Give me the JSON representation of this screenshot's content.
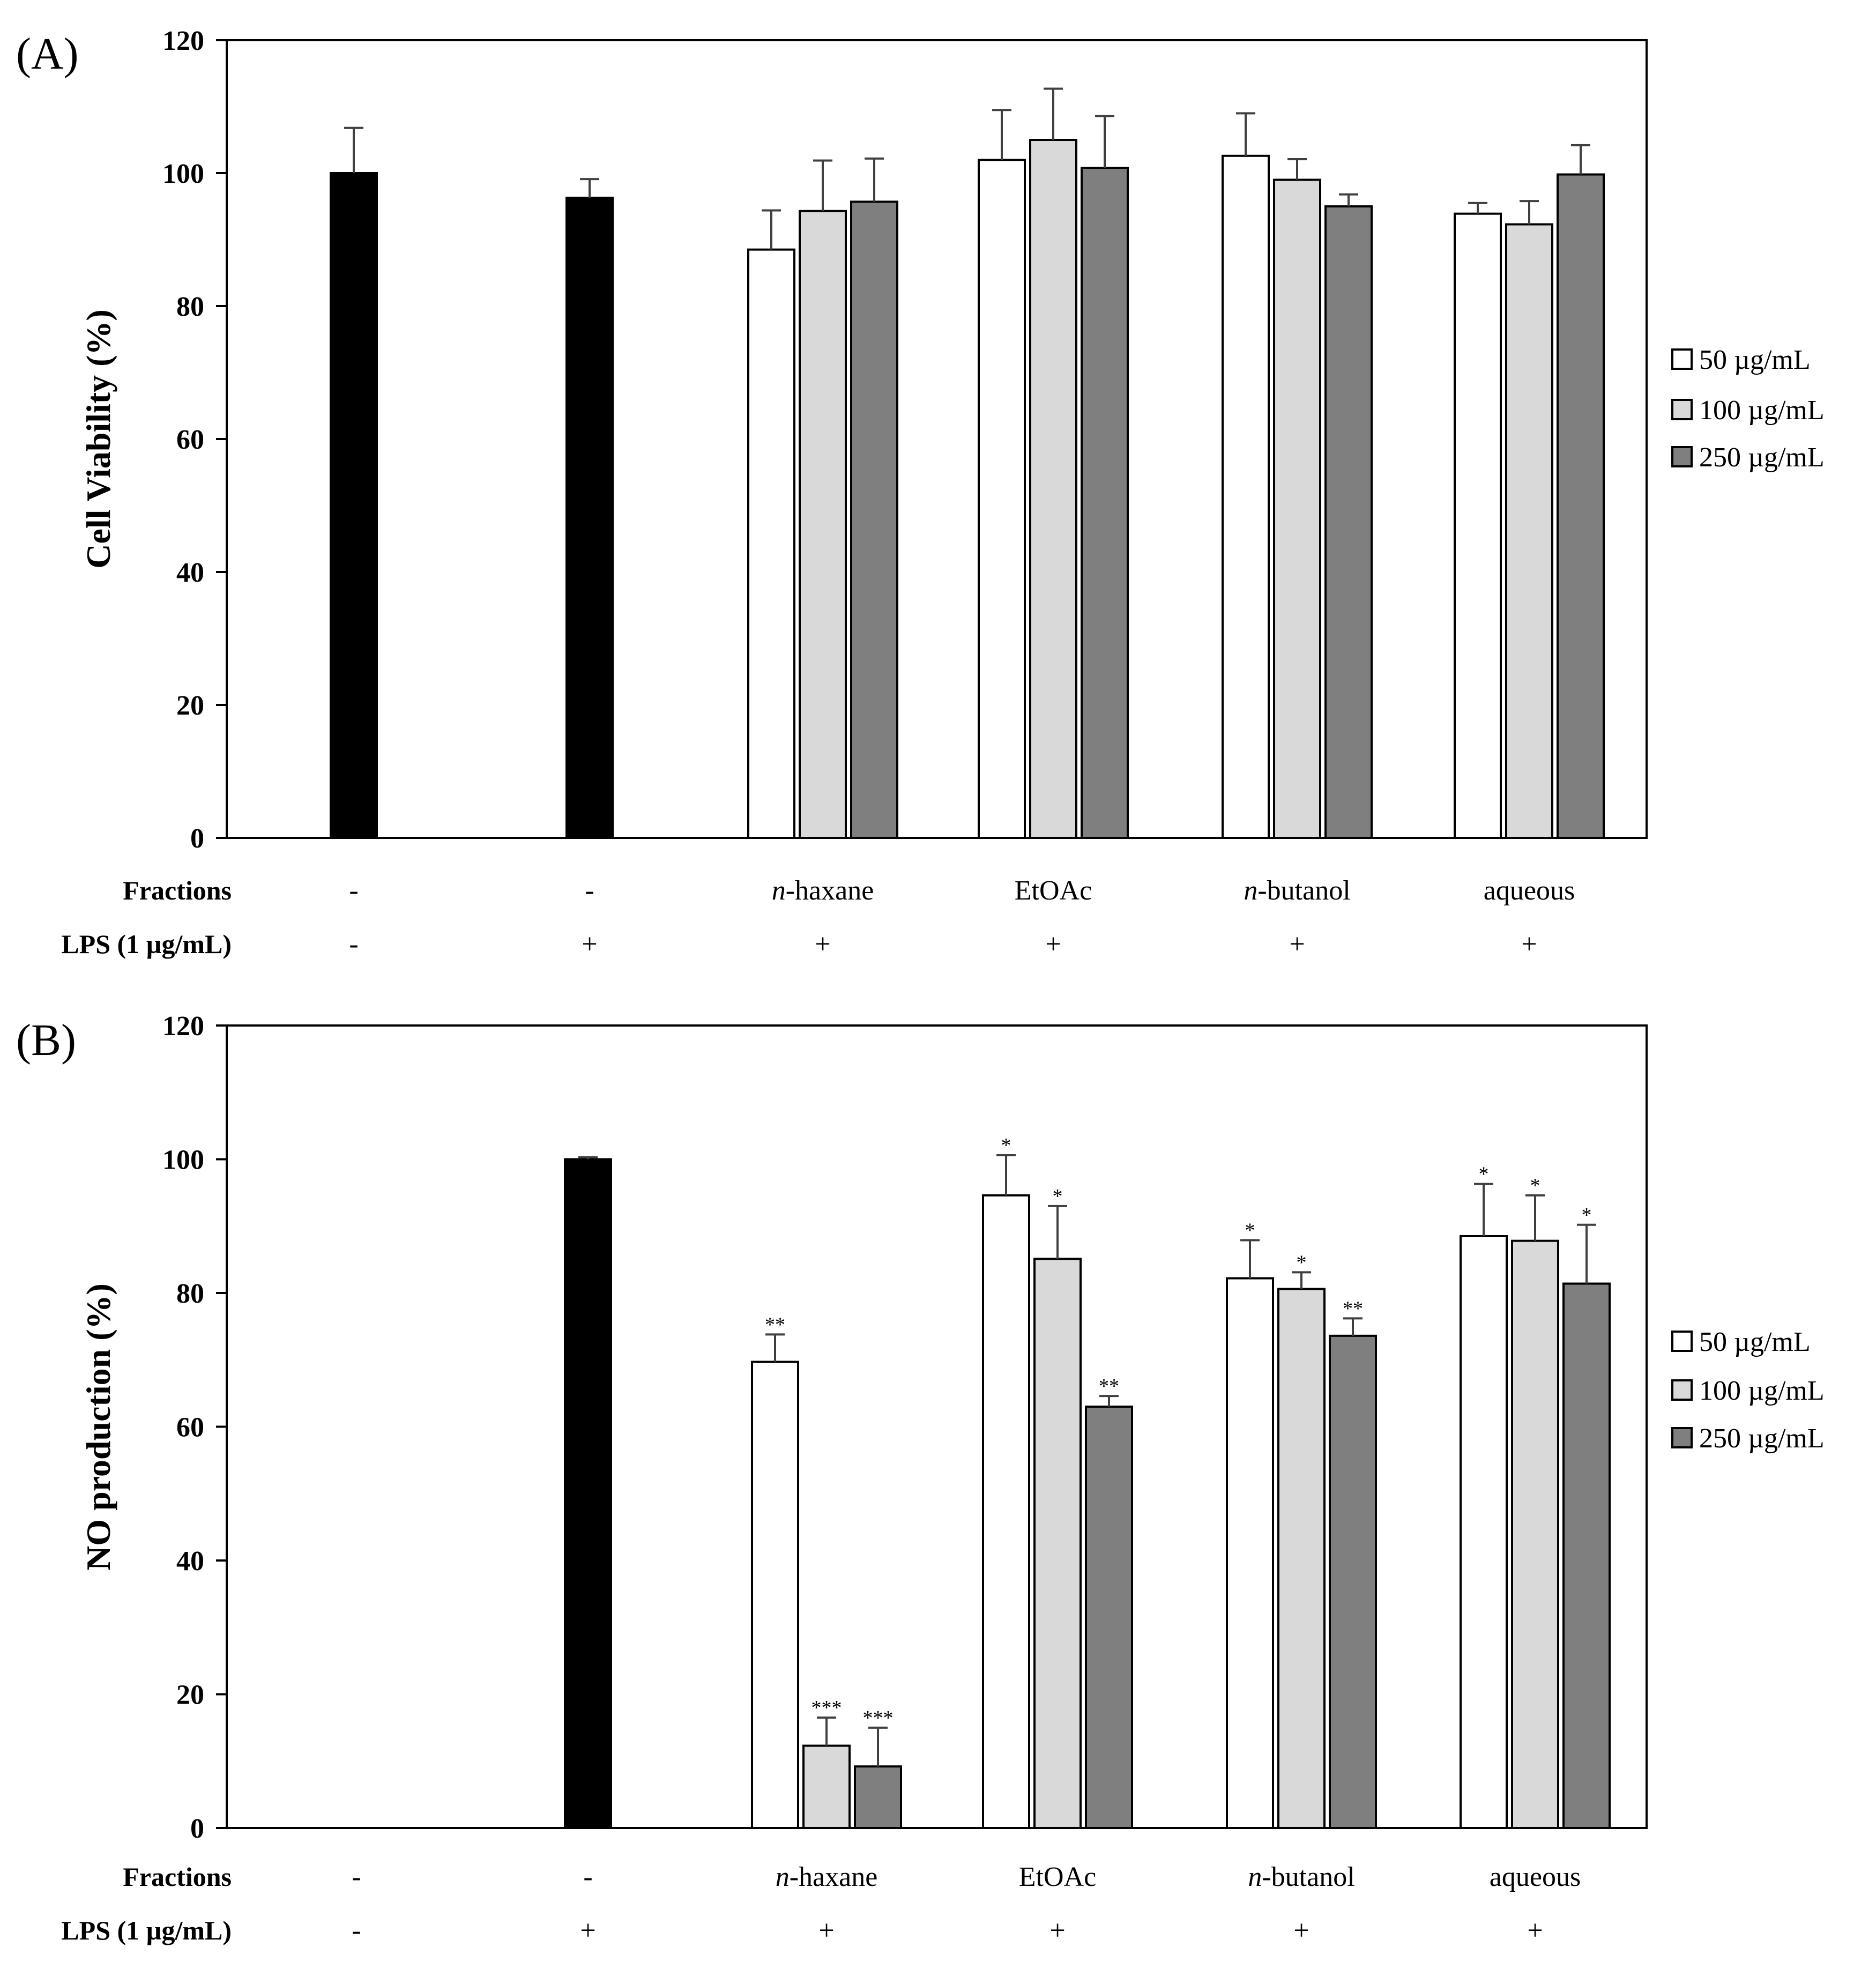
{
  "colors": {
    "control": "#000000",
    "c50": "#ffffff",
    "c100": "#d9d9d9",
    "c250": "#7f7f7f",
    "axis": "#000000",
    "error": "#404040"
  },
  "legend": [
    "50 µg/mL",
    "100 µg/mL",
    "250 µg/mL"
  ],
  "rows": {
    "fractions_label": "Fractions",
    "lps_label": "LPS (1 µg/mL)",
    "fractions": [
      "-",
      "-",
      "n-haxane",
      "EtOAc",
      "n-butanol",
      "aqueous"
    ],
    "fraction_prefix": [
      "",
      "",
      "n",
      "",
      "n",
      ""
    ],
    "fraction_rest": [
      "-",
      "-",
      "-haxane",
      "EtOAc",
      "-butanol",
      "aqueous"
    ],
    "lps": [
      "-",
      "+",
      "+",
      "+",
      "+",
      "+"
    ]
  },
  "chart_data": [
    {
      "panel_label": "(A)",
      "type": "bar",
      "ylabel": "Cell Viability (%)",
      "ylim": [
        0,
        120
      ],
      "yticks": [
        0,
        20,
        40,
        60,
        80,
        100,
        120
      ],
      "controls": [
        {
          "group": 0,
          "value": 100,
          "error": 6.8,
          "sig": ""
        },
        {
          "group": 1,
          "value": 96.3,
          "error": 2.8,
          "sig": ""
        }
      ],
      "series": [
        {
          "name": "50 µg/mL",
          "values": [
            88.5,
            102,
            102.6,
            93.9
          ],
          "errors": [
            5.9,
            7.5,
            6.4,
            1.6
          ],
          "sig": [
            "",
            "",
            "",
            ""
          ]
        },
        {
          "name": "100 µg/mL",
          "values": [
            94.3,
            105,
            99,
            92.3
          ],
          "errors": [
            7.6,
            7.7,
            3.1,
            3.5
          ],
          "sig": [
            "",
            "",
            "",
            ""
          ]
        },
        {
          "name": "250 µg/mL",
          "values": [
            95.7,
            100.8,
            95,
            99.8
          ],
          "errors": [
            6.5,
            7.8,
            1.8,
            4.4
          ],
          "sig": [
            "",
            "",
            "",
            ""
          ]
        }
      ]
    },
    {
      "panel_label": "(B)",
      "type": "bar",
      "ylabel": "NO production (%)",
      "ylim": [
        0,
        120
      ],
      "yticks": [
        0,
        20,
        40,
        60,
        80,
        100,
        120
      ],
      "controls": [
        {
          "group": 0,
          "value": 0,
          "error": 0,
          "sig": ""
        },
        {
          "group": 1,
          "value": 100,
          "error": 0.3,
          "sig": ""
        }
      ],
      "series": [
        {
          "name": "50 µg/mL",
          "values": [
            69.7,
            94.6,
            82.2,
            88.5
          ],
          "errors": [
            4.1,
            6,
            5.7,
            7.8
          ],
          "sig": [
            "**",
            "*",
            "*",
            "*"
          ]
        },
        {
          "name": "100 µg/mL",
          "values": [
            12.3,
            85.1,
            80.6,
            87.8
          ],
          "errors": [
            4.2,
            7.9,
            2.5,
            6.8
          ],
          "sig": [
            "***",
            "*",
            "*",
            "*"
          ]
        },
        {
          "name": "250 µg/mL",
          "values": [
            9.2,
            63,
            73.6,
            81.4
          ],
          "errors": [
            5.8,
            1.6,
            2.6,
            8.8
          ],
          "sig": [
            "***",
            "**",
            "**",
            "*"
          ]
        }
      ]
    }
  ]
}
